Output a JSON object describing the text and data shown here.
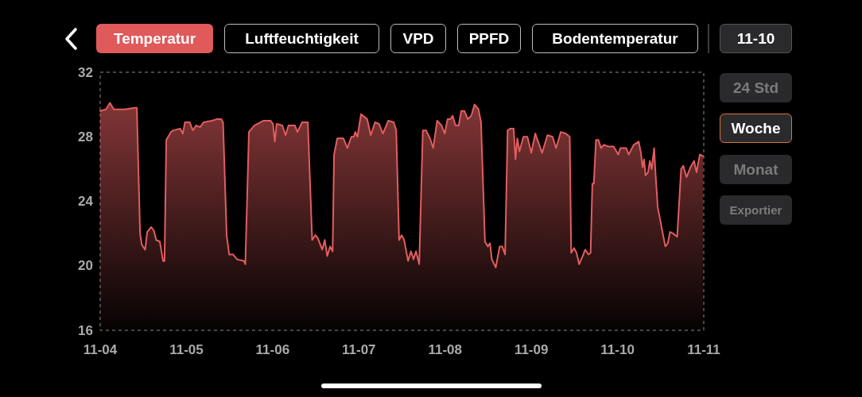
{
  "chart_data": {
    "type": "area",
    "title": "Temperatur",
    "annotations": [
      "Luftfeuchtigkeit",
      "VPD",
      "PPFD",
      "Bodentemperatur",
      "11-10",
      "24 Std",
      "Woche",
      "Monat",
      "Exportier"
    ],
    "x": [
      "--11-04T00:00",
      "--11-04T01:36",
      "--11-04T02:42",
      "--11-04T03:48",
      "--11-04T06:48",
      "--11-04T09:42",
      "--11-04T10:12",
      "--11-04T11:06",
      "--11-04T11:36",
      "--11-04T12:30",
      "--11-04T13:06",
      "--11-04T14:12",
      "--11-04T14:54",
      "--11-04T15:36",
      "--11-04T16:36",
      "--11-04T17:30",
      "--11-04T17:54",
      "--11-04T18:24",
      "--11-04T19:42",
      "--11-04T20:24",
      "--11-04T22:18",
      "--11-04T23:00",
      "--11-04T23:36",
      "--11-05T00:54",
      "--11-05T01:48",
      "--11-05T02:42",
      "--11-05T03:48",
      "--11-05T04:48",
      "--11-05T07:06",
      "--11-05T08:36",
      "--11-05T09:42",
      "--11-05T10:12",
      "--11-05T11:12",
      "--11-05T11:54",
      "--11-05T13:00",
      "--11-05T14:06",
      "--11-05T16:00",
      "--11-05T16:24",
      "--11-05T17:24",
      "--11-05T18:54",
      "--11-05T21:30",
      "--11-05T23:24",
      "--11-06T00:06",
      "--11-06T00:36",
      "--11-06T01:06",
      "--11-06T02:42",
      "--11-06T03:36",
      "--11-06T04:24",
      "--11-06T06:12",
      "--11-06T06:54",
      "--11-06T08:12",
      "--11-06T09:48",
      "--11-06T11:00",
      "--11-06T11:54",
      "--11-06T12:36",
      "--11-06T13:48",
      "--11-06T14:30",
      "--11-06T15:12",
      "--11-06T16:00",
      "--11-06T16:42",
      "--11-06T17:06",
      "--11-06T18:00",
      "--11-06T19:42",
      "--11-06T20:48",
      "--11-06T21:54",
      "--11-06T22:36",
      "--11-06T23:00",
      "--11-06T23:36",
      "--11-07T00:36",
      "--11-07T02:18",
      "--11-07T03:18",
      "--11-07T04:30",
      "--11-07T05:36",
      "--11-07T06:42",
      "--11-07T08:12",
      "--11-07T09:42",
      "--11-07T10:24",
      "--11-07T11:12",
      "--11-07T11:54",
      "--11-07T12:36",
      "--11-07T13:42",
      "--11-07T14:30",
      "--11-07T15:12",
      "--11-07T15:54",
      "--11-07T16:48",
      "--11-07T17:48",
      "--11-07T18:42",
      "--11-07T19:48",
      "--11-07T20:42",
      "--11-07T21:48",
      "--11-07T23:00",
      "--11-07T23:54",
      "--11-08T00:42",
      "--11-08T01:30",
      "--11-08T02:06",
      "--11-08T02:54",
      "--11-08T03:48",
      "--11-08T04:30",
      "--11-08T05:24",
      "--11-08T06:18",
      "--11-08T07:18",
      "--11-08T08:12",
      "--11-08T09:18",
      "--11-08T10:00",
      "--11-08T11:06",
      "--11-08T11:54",
      "--11-08T12:30",
      "--11-08T13:00",
      "--11-08T14:06",
      "--11-08T15:12",
      "--11-08T15:54",
      "--11-08T16:42",
      "--11-08T17:24",
      "--11-08T18:06",
      "--11-08T19:06",
      "--11-08T19:36",
      "--11-08T20:06",
      "--11-08T20:42",
      "--11-08T21:48",
      "--11-08T22:54",
      "--11-09T00:00",
      "--11-09T01:06",
      "--11-09T03:00",
      "--11-09T04:30",
      "--11-09T05:54",
      "--11-09T06:54",
      "--11-09T08:12",
      "--11-09T09:36",
      "--11-09T10:42",
      "--11-09T11:06",
      "--11-09T11:54",
      "--11-09T12:36",
      "--11-09T13:18",
      "--11-09T14:18",
      "--11-09T15:00",
      "--11-09T15:54",
      "--11-09T16:30",
      "--11-09T17:00",
      "--11-09T17:24",
      "--11-09T18:00",
      "--11-09T18:42",
      "--11-09T19:24",
      "--11-09T20:12",
      "--11-09T21:24",
      "--11-09T22:54",
      "--11-10T00:12",
      "--11-10T00:48",
      "--11-10T02:24",
      "--11-10T03:06",
      "--11-10T04:30",
      "--11-10T05:54",
      "--11-10T06:30",
      "--11-10T07:00",
      "--11-10T07:24",
      "--11-10T07:48",
      "--11-10T08:30",
      "--11-10T09:00",
      "--11-10T09:30",
      "--11-10T10:12",
      "--11-10T10:30",
      "--11-10T11:12",
      "--11-10T12:00",
      "--11-10T12:36",
      "--11-10T13:18",
      "--11-10T14:00",
      "--11-10T14:36",
      "--11-10T15:30",
      "--11-10T16:36",
      "--11-10T17:42",
      "--11-10T18:18",
      "--11-10T19:12",
      "--11-10T20:18",
      "--11-10T21:18",
      "--11-10T22:00",
      "--11-10T22:54",
      "--11-10T23:48"
    ],
    "values": [
      29.6,
      29.7,
      30.1,
      29.7,
      29.7,
      29.8,
      29.8,
      22.0,
      21.3,
      21.0,
      22.1,
      22.4,
      22.2,
      21.6,
      21.5,
      20.3,
      20.3,
      27.8,
      28.3,
      28.4,
      28.5,
      28.2,
      28.9,
      28.9,
      28.4,
      28.7,
      28.6,
      28.9,
      29.0,
      29.1,
      29.1,
      28.9,
      21.9,
      20.7,
      20.7,
      20.4,
      20.3,
      20.1,
      28.3,
      28.7,
      29.0,
      29.0,
      28.8,
      27.7,
      28.8,
      28.7,
      28.1,
      28.7,
      28.7,
      28.3,
      28.9,
      28.9,
      21.6,
      21.9,
      21.7,
      21.0,
      21.6,
      20.6,
      21.2,
      20.9,
      26.9,
      27.9,
      27.9,
      27.3,
      28.0,
      28.0,
      28.3,
      28.0,
      29.4,
      29.1,
      28.1,
      28.9,
      28.8,
      28.2,
      29.0,
      28.9,
      28.4,
      21.6,
      21.9,
      21.6,
      20.3,
      20.9,
      20.4,
      20.9,
      20.1,
      28.4,
      28.4,
      27.9,
      27.3,
      29.0,
      28.7,
      28.2,
      29.1,
      29.1,
      29.3,
      28.7,
      28.7,
      29.6,
      29.6,
      29.1,
      29.3,
      30.0,
      29.7,
      28.9,
      21.5,
      21.2,
      21.4,
      20.4,
      19.9,
      21.2,
      21.2,
      20.7,
      28.4,
      28.5,
      28.5,
      26.6,
      27.9,
      27.1,
      28.0,
      28.0,
      27.0,
      28.2,
      27.0,
      28.1,
      28.0,
      27.3,
      28.3,
      28.2,
      28.0,
      20.8,
      21.1,
      20.8,
      20.1,
      20.6,
      21.0,
      20.7,
      20.8,
      25.1,
      25.1,
      27.8,
      27.8,
      27.3,
      27.5,
      27.4,
      27.4,
      26.9,
      27.3,
      27.3,
      26.9,
      27.5,
      27.7,
      27.0,
      26.1,
      26.6,
      25.6,
      25.8,
      26.5,
      26.0,
      27.3,
      26.0,
      23.6,
      22.7,
      22.0,
      21.2,
      21.4,
      22.1,
      22.0,
      21.8,
      26.0,
      26.2,
      25.5,
      26.1,
      26.5,
      25.8,
      26.9,
      26.8
    ],
    "color": "#e35d5f",
    "xlim": [
      "--11-04",
      "--11-11"
    ],
    "xticks": [
      {
        "value": "--11-04",
        "label": "11-04"
      },
      {
        "value": "--11-05",
        "label": "11-05"
      },
      {
        "value": "--11-06",
        "label": "11-06"
      },
      {
        "value": "--11-07",
        "label": "11-07"
      },
      {
        "value": "--11-08",
        "label": "11-08"
      },
      {
        "value": "--11-09",
        "label": "11-09"
      },
      {
        "value": "--11-10",
        "label": "11-10"
      },
      {
        "value": "--11-11",
        "label": "11-11"
      }
    ],
    "ylim": [
      16,
      32
    ],
    "yticks": [
      16,
      20,
      24,
      28,
      32
    ],
    "grid": false,
    "marker": "none",
    "line_style": "solid"
  }
}
